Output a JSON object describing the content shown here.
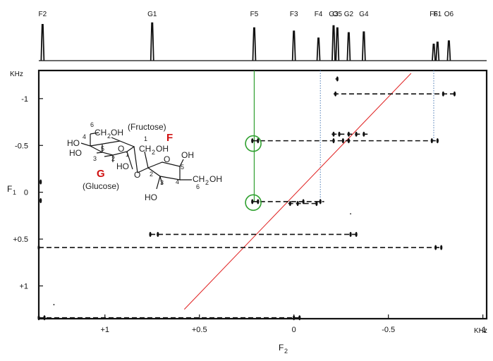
{
  "chart_data": {
    "type": "scatter",
    "title": "",
    "x_axis": {
      "label": "F",
      "label_subscript": "2",
      "unit": "KHz",
      "range": [
        1.35,
        -1.02
      ],
      "reversed": true,
      "ticks": [
        {
          "value": 1,
          "label": "+1"
        },
        {
          "value": 0.5,
          "label": "+0.5"
        },
        {
          "value": 0,
          "label": "0"
        },
        {
          "value": -0.5,
          "label": "-0.5"
        },
        {
          "value": -1,
          "label": "-1"
        }
      ]
    },
    "y_axis": {
      "label": "F",
      "label_subscript": "1",
      "unit": "KHz",
      "range": [
        -1.3,
        1.35
      ],
      "reversed": true,
      "ticks": [
        {
          "value": -1,
          "label": "-1"
        },
        {
          "value": -0.5,
          "label": "-0.5"
        },
        {
          "value": 0,
          "label": "0"
        },
        {
          "value": 0.5,
          "label": "+0.5"
        },
        {
          "value": 1,
          "label": "+1"
        }
      ]
    },
    "spectrum_peaks": [
      {
        "name": "F2",
        "x": 1.33,
        "height": 0.88
      },
      {
        "name": "G1",
        "x": 0.75,
        "height": 0.92
      },
      {
        "name": "F5",
        "x": 0.21,
        "height": 0.8
      },
      {
        "name": "F3",
        "x": 0.0,
        "height": 0.72
      },
      {
        "name": "F4",
        "x": -0.13,
        "height": 0.55
      },
      {
        "name": "G3",
        "x": -0.21,
        "height": 0.85
      },
      {
        "name": "O5",
        "x": -0.23,
        "height": 0.8
      },
      {
        "name": "G2",
        "x": -0.29,
        "height": 0.68
      },
      {
        "name": "G4",
        "x": -0.37,
        "height": 0.7
      },
      {
        "name": "F6",
        "x": -0.74,
        "height": 0.4
      },
      {
        "name": "F1",
        "x": -0.76,
        "height": 0.45
      },
      {
        "name": "O6",
        "x": -0.82,
        "height": 0.48
      }
    ],
    "multiplets": [
      {
        "y": -1.21,
        "x_start": -0.22,
        "x_end": -0.23,
        "dashed": false,
        "peaks": [
          -0.23
        ]
      },
      {
        "y": -1.05,
        "x_start": -0.21,
        "x_end": -0.85,
        "dashed": true,
        "peaks": [
          -0.22,
          -0.79,
          -0.85
        ]
      },
      {
        "y": -0.62,
        "x_start": -0.2,
        "x_end": -0.39,
        "dashed": true,
        "peaks": [
          -0.21,
          -0.24,
          -0.29,
          -0.33,
          -0.37
        ]
      },
      {
        "y": -0.55,
        "x_start": 0.22,
        "x_end": -0.76,
        "dashed": true,
        "peaks": [
          0.22,
          0.19,
          -0.21,
          -0.26,
          -0.29,
          -0.73,
          -0.76
        ]
      },
      {
        "y": 0.12,
        "x_start": 0.03,
        "x_end": -0.13,
        "dashed": true,
        "peaks": [
          0.02,
          -0.02,
          -0.12
        ]
      },
      {
        "y": 0.09,
        "x_start": 1.34,
        "x_end": 1.34,
        "dashed": false,
        "peaks": [
          1.34
        ]
      },
      {
        "y": -0.11,
        "x_start": 1.34,
        "x_end": 1.34,
        "dashed": false,
        "peaks": [
          1.34
        ]
      },
      {
        "y": 0.1,
        "x_start": 0.22,
        "x_end": -0.16,
        "dashed": true,
        "peaks": [
          0.22,
          0.19,
          -0.05,
          -0.14
        ]
      },
      {
        "y": 0.45,
        "x_start": 0.76,
        "x_end": -0.33,
        "dashed": true,
        "peaks": [
          0.76,
          0.72,
          -0.3,
          -0.33
        ]
      },
      {
        "y": 0.59,
        "x_start": 1.35,
        "x_end": -0.78,
        "dashed": true,
        "peaks": [
          1.35,
          -0.75,
          -0.78
        ]
      },
      {
        "y": 1.34,
        "x_start": 1.35,
        "x_end": -0.03,
        "dashed": true,
        "peaks": [
          1.35,
          1.32,
          0.0,
          -0.03
        ]
      }
    ],
    "circled_peaks": [
      {
        "x": 0.215,
        "y": -0.52
      },
      {
        "x": 0.215,
        "y": 0.11
      }
    ],
    "guide_lines": [
      {
        "x": 0.21,
        "y_from": -1.3,
        "y_to": 0.1,
        "color": "#2e9e2e",
        "style": "solid"
      },
      {
        "x": -0.14,
        "y_from": -1.3,
        "y_to": 0.12,
        "color": "#4a7ab5",
        "style": "dotted"
      },
      {
        "x": -0.74,
        "y_from": -1.3,
        "y_to": -0.55,
        "color": "#4a7ab5",
        "style": "dotted"
      }
    ],
    "diagonal": {
      "from": {
        "x": 0.58,
        "y": 1.25
      },
      "to": {
        "x": -0.62,
        "y": -1.27
      },
      "color": "#e02020"
    },
    "stray_dots": [
      {
        "x": -0.3,
        "y": 0.23
      },
      {
        "x": 1.27,
        "y": 1.2
      }
    ]
  },
  "molecule": {
    "fructose_label": "(Fructose)",
    "fructose_letter": "F",
    "glucose_label": "(Glucose)",
    "glucose_letter": "G",
    "labels": {
      "g6": "6",
      "ch2oh_g": "CH",
      "ch2oh_g_sub": "2",
      "ch2oh_g_oh": "OH",
      "g4": "4",
      "g5": "5",
      "ho_g4": "HO",
      "ho_g3": "HO",
      "g3": "3",
      "g2": "2",
      "g1": "1",
      "ho_g2": "HO",
      "f1": "1",
      "ch2oh_f1": "CH",
      "ch2oh_f1_sub": "2",
      "ch2oh_f1_oh": "OH",
      "f2": "2",
      "f3": "3",
      "f4": "4",
      "f5": "5",
      "f6": "6",
      "ho_f3": "HO",
      "oh_f4": "OH",
      "ch2oh_f6": "CH",
      "ch2oh_f6_sub": "2",
      "ch2oh_f6_oh": "OH",
      "o_ring_g": "O",
      "o_link": "O",
      "o_ring_f": "O"
    }
  }
}
